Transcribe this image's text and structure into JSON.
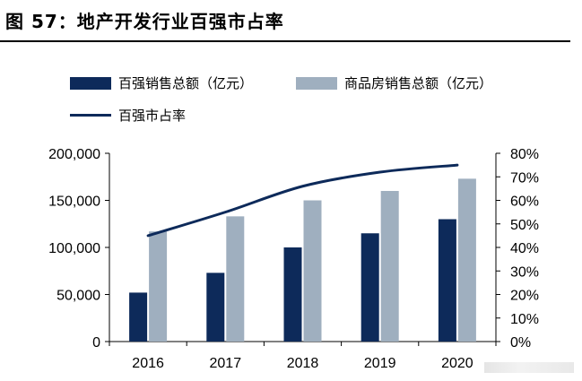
{
  "figure": {
    "title": "图 57：地产开发行业百强市占率"
  },
  "colors": {
    "bar1": "#0d2a5a",
    "bar2": "#9fafbf",
    "line": "#0d2a5a"
  },
  "chart_data": {
    "type": "bar",
    "categories": [
      "2016",
      "2017",
      "2018",
      "2019",
      "2020"
    ],
    "series": [
      {
        "name": "百强销售总额（亿元）",
        "kind": "bar",
        "axis": "left",
        "values": [
          52000,
          73000,
          100000,
          115000,
          130000
        ]
      },
      {
        "name": "商品房销售总额（亿元）",
        "kind": "bar",
        "axis": "left",
        "values": [
          117000,
          133000,
          150000,
          160000,
          173000
        ]
      },
      {
        "name": "百强市占率",
        "kind": "line",
        "axis": "right",
        "values": [
          45,
          55,
          66,
          72,
          75
        ]
      }
    ],
    "y_left": {
      "lim": [
        0,
        200000
      ],
      "ticks": [
        "0",
        "50,000",
        "100,000",
        "150,000",
        "200,000"
      ]
    },
    "y_right": {
      "lim": [
        0,
        80
      ],
      "ticks": [
        "0%",
        "10%",
        "20%",
        "30%",
        "40%",
        "50%",
        "60%",
        "70%",
        "80%"
      ]
    },
    "grid": false,
    "legend_position": "top-left"
  }
}
